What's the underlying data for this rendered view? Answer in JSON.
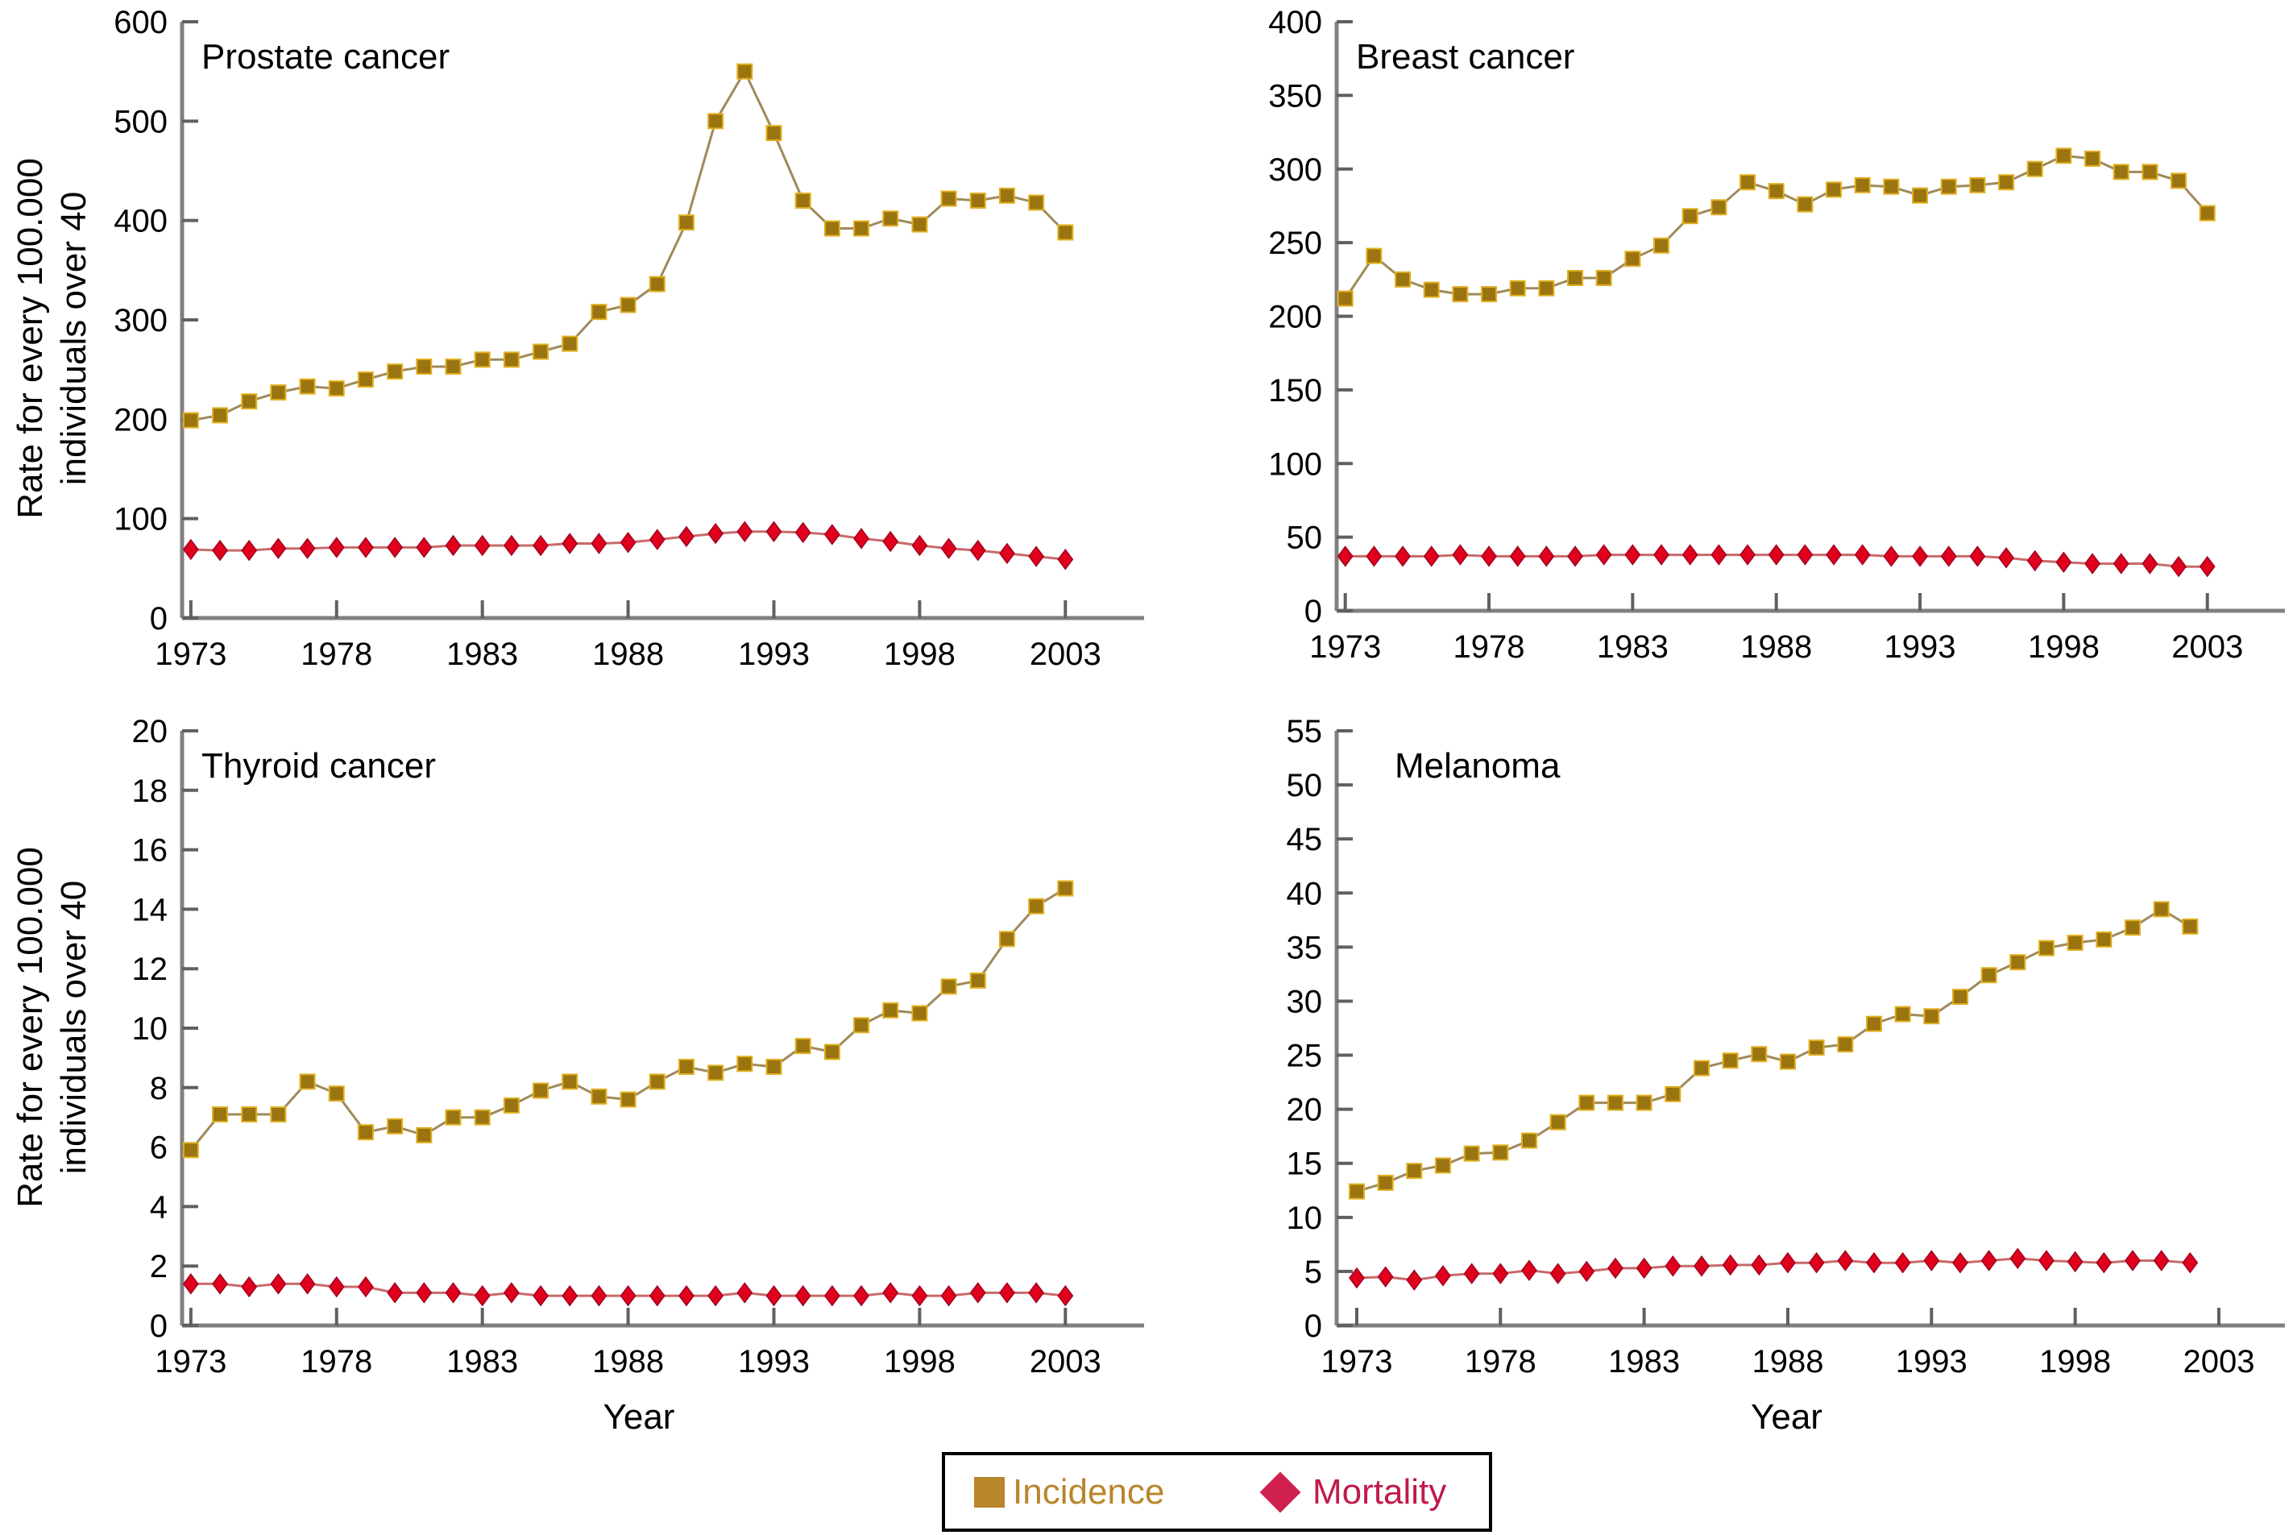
{
  "legend": {
    "incidence_label": "Incidence",
    "mortality_label": "Mortality",
    "incidence_color": "#b8862b",
    "mortality_color": "#d0204f"
  },
  "shared_ylabel_line1": "Rate for every 100.000",
  "shared_ylabel_line2": "individuals over 40",
  "shared_xlabel": "Year",
  "chart_data": [
    {
      "type": "line",
      "title": "Prostate cancer",
      "xlabel": "",
      "ylabel": "Rate for every 100.000 individuals over 40",
      "xlim": [
        1972.7,
        2005.7
      ],
      "ylim": [
        0,
        600
      ],
      "yticks": [
        0,
        100,
        200,
        300,
        400,
        500,
        600
      ],
      "xticks": [
        1973,
        1978,
        1983,
        1988,
        1993,
        1998,
        2003
      ],
      "x": [
        1973,
        1974,
        1975,
        1976,
        1977,
        1978,
        1979,
        1980,
        1981,
        1982,
        1983,
        1984,
        1985,
        1986,
        1987,
        1988,
        1989,
        1990,
        1991,
        1992,
        1993,
        1994,
        1995,
        1996,
        1997,
        1998,
        1999,
        2000,
        2001,
        2002,
        2003
      ],
      "series": [
        {
          "name": "Incidence",
          "values": [
            199,
            204,
            218,
            227,
            233,
            231,
            240,
            248,
            253,
            253,
            260,
            260,
            268,
            276,
            308,
            315,
            336,
            398,
            500,
            550,
            488,
            420,
            392,
            392,
            402,
            396,
            422,
            420,
            425,
            418,
            388
          ]
        },
        {
          "name": "Mortality",
          "values": [
            69,
            68,
            68,
            70,
            70,
            71,
            71,
            71,
            71,
            73,
            73,
            73,
            73,
            75,
            75,
            76,
            79,
            82,
            85,
            87,
            87,
            86,
            84,
            80,
            77,
            73,
            70,
            68,
            65,
            62,
            59
          ]
        }
      ]
    },
    {
      "type": "line",
      "title": "Breast cancer",
      "xlabel": "",
      "ylabel": "",
      "xlim": [
        1972.7,
        2005.7
      ],
      "ylim": [
        0,
        400
      ],
      "yticks": [
        0,
        50,
        100,
        150,
        200,
        250,
        300,
        350,
        400
      ],
      "xticks": [
        1973,
        1978,
        1983,
        1988,
        1993,
        1998,
        2003
      ],
      "x": [
        1973,
        1974,
        1975,
        1976,
        1977,
        1978,
        1979,
        1980,
        1981,
        1982,
        1983,
        1984,
        1985,
        1986,
        1987,
        1988,
        1989,
        1990,
        1991,
        1992,
        1993,
        1994,
        1995,
        1996,
        1997,
        1998,
        1999,
        2000,
        2001,
        2002,
        2003
      ],
      "series": [
        {
          "name": "Incidence",
          "values": [
            212,
            241,
            225,
            218,
            215,
            215,
            219,
            219,
            226,
            226,
            239,
            248,
            268,
            274,
            291,
            285,
            276,
            286,
            289,
            288,
            282,
            288,
            289,
            291,
            300,
            309,
            307,
            298,
            298,
            292,
            270
          ]
        },
        {
          "name": "Mortality",
          "values": [
            37,
            37,
            37,
            37,
            38,
            37,
            37,
            37,
            37,
            38,
            38,
            38,
            38,
            38,
            38,
            38,
            38,
            38,
            38,
            37,
            37,
            37,
            37,
            36,
            34,
            33,
            32,
            32,
            32,
            30,
            30
          ]
        }
      ]
    },
    {
      "type": "line",
      "title": "Thyroid cancer",
      "xlabel": "Year",
      "ylabel": "Rate for every 100.000 individuals over 40",
      "xlim": [
        1972.7,
        2005.7
      ],
      "ylim": [
        0,
        20
      ],
      "yticks": [
        0,
        2,
        4,
        6,
        8,
        10,
        12,
        14,
        16,
        18,
        20
      ],
      "xticks": [
        1973,
        1978,
        1983,
        1988,
        1993,
        1998,
        2003
      ],
      "x": [
        1973,
        1974,
        1975,
        1976,
        1977,
        1978,
        1979,
        1980,
        1981,
        1982,
        1983,
        1984,
        1985,
        1986,
        1987,
        1988,
        1989,
        1990,
        1991,
        1992,
        1993,
        1994,
        1995,
        1996,
        1997,
        1998,
        1999,
        2000,
        2001,
        2002,
        2003
      ],
      "series": [
        {
          "name": "Incidence",
          "values": [
            5.9,
            7.1,
            7.1,
            7.1,
            8.2,
            7.8,
            6.5,
            6.7,
            6.4,
            7.0,
            7.0,
            7.4,
            7.9,
            8.2,
            7.7,
            7.6,
            8.2,
            8.7,
            8.5,
            8.8,
            8.7,
            9.4,
            9.2,
            10.1,
            10.6,
            10.5,
            11.4,
            11.6,
            13.0,
            14.1,
            14.7
          ]
        },
        {
          "name": "Mortality",
          "values": [
            1.4,
            1.4,
            1.3,
            1.4,
            1.4,
            1.3,
            1.3,
            1.1,
            1.1,
            1.1,
            1.0,
            1.1,
            1.0,
            1.0,
            1.0,
            1.0,
            1.0,
            1.0,
            1.0,
            1.1,
            1.0,
            1.0,
            1.0,
            1.0,
            1.1,
            1.0,
            1.0,
            1.1,
            1.1,
            1.1,
            1.0
          ]
        }
      ]
    },
    {
      "type": "line",
      "title": "Melanoma",
      "xlabel": "Year",
      "ylabel": "",
      "xlim": [
        1972.3,
        2005.3
      ],
      "ylim": [
        0,
        55
      ],
      "yticks": [
        0,
        5,
        10,
        15,
        20,
        25,
        30,
        35,
        40,
        45,
        50,
        55
      ],
      "xticks": [
        1973,
        1978,
        1983,
        1988,
        1993,
        1998,
        2003
      ],
      "x": [
        1973,
        1974,
        1975,
        1976,
        1977,
        1978,
        1979,
        1980,
        1981,
        1982,
        1983,
        1984,
        1985,
        1986,
        1987,
        1988,
        1989,
        1990,
        1991,
        1992,
        1993,
        1994,
        1995,
        1996,
        1997,
        1998,
        1999,
        2000,
        2001,
        2002
      ],
      "series": [
        {
          "name": "Incidence",
          "values": [
            12.4,
            13.2,
            14.3,
            14.8,
            15.9,
            16.0,
            17.1,
            18.8,
            20.6,
            20.6,
            20.6,
            21.4,
            23.8,
            24.5,
            25.1,
            24.4,
            25.7,
            26.0,
            27.9,
            28.8,
            28.6,
            30.4,
            32.4,
            33.6,
            34.9,
            35.4,
            35.7,
            36.8,
            38.5,
            36.9
          ]
        },
        {
          "name": "Mortality",
          "values": [
            4.4,
            4.5,
            4.2,
            4.6,
            4.8,
            4.8,
            5.1,
            4.8,
            5.0,
            5.3,
            5.3,
            5.5,
            5.5,
            5.6,
            5.6,
            5.8,
            5.8,
            6.0,
            5.8,
            5.8,
            6.0,
            5.8,
            6.0,
            6.2,
            6.0,
            5.9,
            5.8,
            6.0,
            6.0,
            5.8
          ]
        }
      ]
    }
  ]
}
